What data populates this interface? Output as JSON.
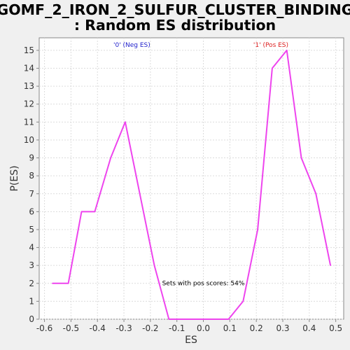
{
  "chart_data": {
    "type": "line",
    "title_lines": [
      "GOMF_2_IRON_2_SULFUR_CLUSTER_BINDING",
      ": Random ES distribution"
    ],
    "xlabel": "ES",
    "ylabel": "P(ES)",
    "xlim": [
      -0.62,
      0.53
    ],
    "ylim": [
      0,
      15.7
    ],
    "xticks": [
      "-0.6",
      "-0.5",
      "-0.4",
      "-0.3",
      "-0.2",
      "-0.1",
      "0.0",
      "0.1",
      "0.2",
      "0.3",
      "0.4",
      "0.5"
    ],
    "yticks": [
      "0",
      "1",
      "2",
      "3",
      "4",
      "5",
      "6",
      "7",
      "8",
      "9",
      "10",
      "11",
      "12",
      "13",
      "14",
      "15"
    ],
    "grid": true,
    "series": [
      {
        "color": "#ee44ee",
        "x": [
          -0.57,
          -0.51,
          -0.46,
          -0.41,
          -0.35,
          -0.295,
          -0.24,
          -0.185,
          -0.13,
          -0.08,
          -0.02,
          0.04,
          0.095,
          0.15,
          0.205,
          0.26,
          0.315,
          0.37,
          0.425,
          0.48
        ],
        "y": [
          2,
          2,
          6,
          6,
          9,
          11,
          7,
          3,
          0,
          0,
          0,
          0,
          0,
          1,
          5,
          14,
          15,
          9,
          7,
          3
        ]
      }
    ],
    "annotations": [
      {
        "text": "'0' (Neg ES)",
        "color": "#2222cc",
        "x": -0.27,
        "y": 15.2
      },
      {
        "text": "'1' (Pos ES)",
        "color": "#dd2222",
        "x": 0.255,
        "y": 15.2
      },
      {
        "text": "Sets with pos scores: 54%",
        "color": "#000000",
        "x": 0.0,
        "y": 1.9
      }
    ]
  }
}
